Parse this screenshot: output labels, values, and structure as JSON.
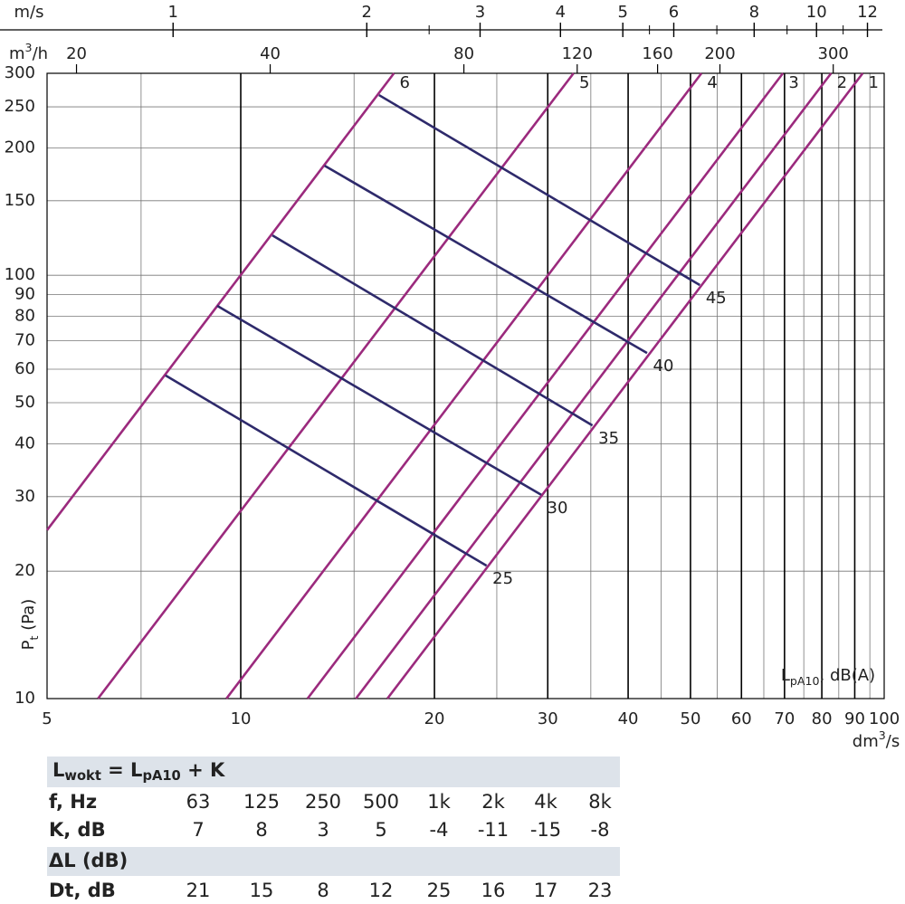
{
  "chart_data": {
    "type": "line",
    "xscale": "log",
    "yscale": "log",
    "xlim": [
      5,
      100
    ],
    "ylim": [
      10,
      300
    ],
    "xticks": [
      5,
      10,
      20,
      30,
      40,
      50,
      60,
      70,
      80,
      90,
      100
    ],
    "yticks": [
      10,
      20,
      30,
      40,
      50,
      60,
      70,
      80,
      90,
      100,
      150,
      200,
      250,
      300
    ],
    "xminor": [
      7,
      15,
      25,
      35,
      45,
      55,
      65,
      75,
      85,
      95
    ],
    "grid": true,
    "xlabel": [
      {
        "text": "dm"
      },
      {
        "text": "3",
        "sup": true
      },
      {
        "text": "/s"
      }
    ],
    "ylabel": [
      {
        "text": "P"
      },
      {
        "text": "t",
        "sub": true
      },
      {
        "text": " (Pa)"
      }
    ],
    "annotation": [
      {
        "text": "L"
      },
      {
        "text": "pA10",
        "sub": true
      },
      {
        "text": ", dB(A)"
      }
    ],
    "secondary_axes": [
      {
        "label": "m/s",
        "lim": [
          0.637,
          12.74
        ],
        "ticks": [
          1,
          2,
          3,
          4,
          5,
          6,
          8,
          10,
          12
        ],
        "minor": [
          2.5,
          5.5,
          7,
          9,
          11
        ]
      },
      {
        "label": [
          {
            "text": "m"
          },
          {
            "text": "3",
            "sup": true
          },
          {
            "text": "/h"
          }
        ],
        "lim": [
          18,
          360
        ],
        "ticks": [
          20,
          40,
          80,
          120,
          160,
          200,
          300
        ]
      }
    ],
    "series": [
      {
        "name": "1",
        "color": "#9b2a7d",
        "x": [
          16.9,
          92.6
        ],
        "values": [
          10,
          300
        ]
      },
      {
        "name": "2",
        "color": "#9b2a7d",
        "x": [
          15.1,
          82.7
        ],
        "values": [
          10,
          300
        ]
      },
      {
        "name": "3",
        "color": "#9b2a7d",
        "x": [
          12.7,
          69.6
        ],
        "values": [
          10,
          300
        ]
      },
      {
        "name": "4",
        "color": "#9b2a7d",
        "x": [
          9.5,
          52
        ],
        "values": [
          10,
          300
        ]
      },
      {
        "name": "5",
        "color": "#9b2a7d",
        "x": [
          6,
          32.9
        ],
        "values": [
          10,
          300
        ]
      },
      {
        "name": "6",
        "color": "#9b2a7d",
        "x": [
          5,
          17.3
        ],
        "values": [
          25,
          300
        ]
      },
      {
        "name": "25",
        "color": "#2e2a6b",
        "x": [
          7.64,
          24.1
        ],
        "values": [
          58,
          20.6
        ]
      },
      {
        "name": "30",
        "color": "#2e2a6b",
        "x": [
          9.19,
          29.3
        ],
        "values": [
          84.7,
          30.3
        ]
      },
      {
        "name": "35",
        "color": "#2e2a6b",
        "x": [
          11.2,
          35.2
        ],
        "values": [
          124.2,
          44.2
        ]
      },
      {
        "name": "40",
        "color": "#2e2a6b",
        "x": [
          13.5,
          42.8
        ],
        "values": [
          181.5,
          65.5
        ]
      },
      {
        "name": "45",
        "color": "#2e2a6b",
        "x": [
          16.4,
          51.7
        ],
        "values": [
          266.5,
          94.8
        ]
      }
    ]
  },
  "table": {
    "title": [
      {
        "text": "L"
      },
      {
        "text": "wokt",
        "sub": true
      },
      {
        "text": " = L"
      },
      {
        "text": "pA10",
        "sub": true
      },
      {
        "text": " + K"
      }
    ],
    "rows": [
      [
        "f, Hz",
        "63",
        "125",
        "250",
        "500",
        "1k",
        "2k",
        "4k",
        "8k"
      ],
      [
        "K, dB",
        7,
        8,
        3,
        5,
        -4,
        -11,
        -15,
        -8
      ]
    ],
    "subtitle": "ΔL (dB)",
    "rows2": [
      [
        "Dt, dB",
        21,
        15,
        8,
        12,
        25,
        16,
        17,
        23
      ]
    ]
  }
}
